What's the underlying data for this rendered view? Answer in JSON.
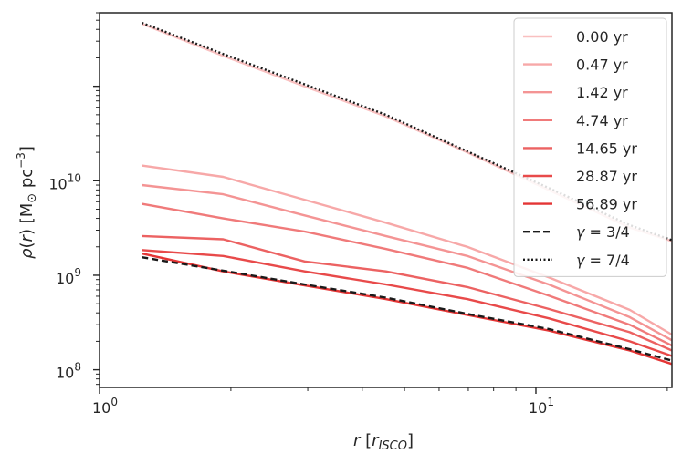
{
  "chart_data": {
    "type": "line",
    "title": "",
    "xlabel": "r [r_ISCO]",
    "ylabel": "ρ(r) [M⊙ pc⁻³]",
    "x_scale": "log",
    "y_scale": "log",
    "xlim": [
      1.0,
      20.5
    ],
    "ylim": [
      65000000,
      600000000000
    ],
    "x_ticks": [
      {
        "value": 1,
        "label": "10",
        "exp": "0"
      },
      {
        "value": 10,
        "label": "10",
        "exp": "1"
      }
    ],
    "y_ticks": [
      {
        "value": 100000000,
        "label": "10",
        "exp": "8"
      },
      {
        "value": 1000000000,
        "label": "10",
        "exp": "9"
      },
      {
        "value": 10000000000,
        "label": "10",
        "exp": "10"
      }
    ],
    "grid": false,
    "legend_position": "upper right",
    "x": [
      1.25,
      1.92,
      2.95,
      4.53,
      6.96,
      10.7,
      16.4,
      20.5
    ],
    "series": [
      {
        "name": "0.00 yr",
        "color": "#f9c0c0",
        "style": "solid",
        "values": [
          460000000000,
          210000000000,
          100000000000,
          48000000000,
          20000000000,
          8000000000,
          3200000000,
          2300000000
        ]
      },
      {
        "name": "0.47 yr",
        "color": "#f7a8a8",
        "style": "solid",
        "values": [
          14500000000,
          11000000000,
          6300000000,
          3600000000,
          2000000000,
          950000000,
          430000000,
          235000000
        ]
      },
      {
        "name": "1.42 yr",
        "color": "#f49494",
        "style": "solid",
        "values": [
          9000000000,
          7200000000,
          4300000000,
          2600000000,
          1600000000,
          800000000,
          360000000,
          205000000
        ]
      },
      {
        "name": "4.74 yr",
        "color": "#f07a7a",
        "style": "solid",
        "values": [
          5700000000,
          4000000000,
          2900000000,
          1900000000,
          1200000000,
          610000000,
          300000000,
          180000000
        ]
      },
      {
        "name": "14.65 yr",
        "color": "#ec6262",
        "style": "solid",
        "values": [
          2600000000,
          2400000000,
          1400000000,
          1100000000,
          750000000,
          440000000,
          250000000,
          160000000
        ]
      },
      {
        "name": "28.87 yr",
        "color": "#e84a4a",
        "style": "solid",
        "values": [
          1850000000,
          1600000000,
          1100000000,
          800000000,
          560000000,
          350000000,
          200000000,
          140000000
        ]
      },
      {
        "name": "56.89 yr",
        "color": "#e43535",
        "style": "solid",
        "values": [
          1700000000,
          1100000000,
          780000000,
          560000000,
          380000000,
          260000000,
          160000000,
          115000000
        ]
      },
      {
        "name": "γ = 3/4",
        "color": "#1a1a1a",
        "style": "dashed",
        "values": [
          1550000000,
          1120000000,
          800000000,
          580000000,
          390000000,
          270000000,
          165000000,
          125000000
        ]
      },
      {
        "name": "γ = 7/4",
        "color": "#1a1a1a",
        "style": "dotted",
        "values": [
          470000000000,
          220000000000,
          105000000000,
          50000000000,
          20500000000,
          8400000000,
          3400000000,
          2350000000
        ]
      }
    ]
  }
}
